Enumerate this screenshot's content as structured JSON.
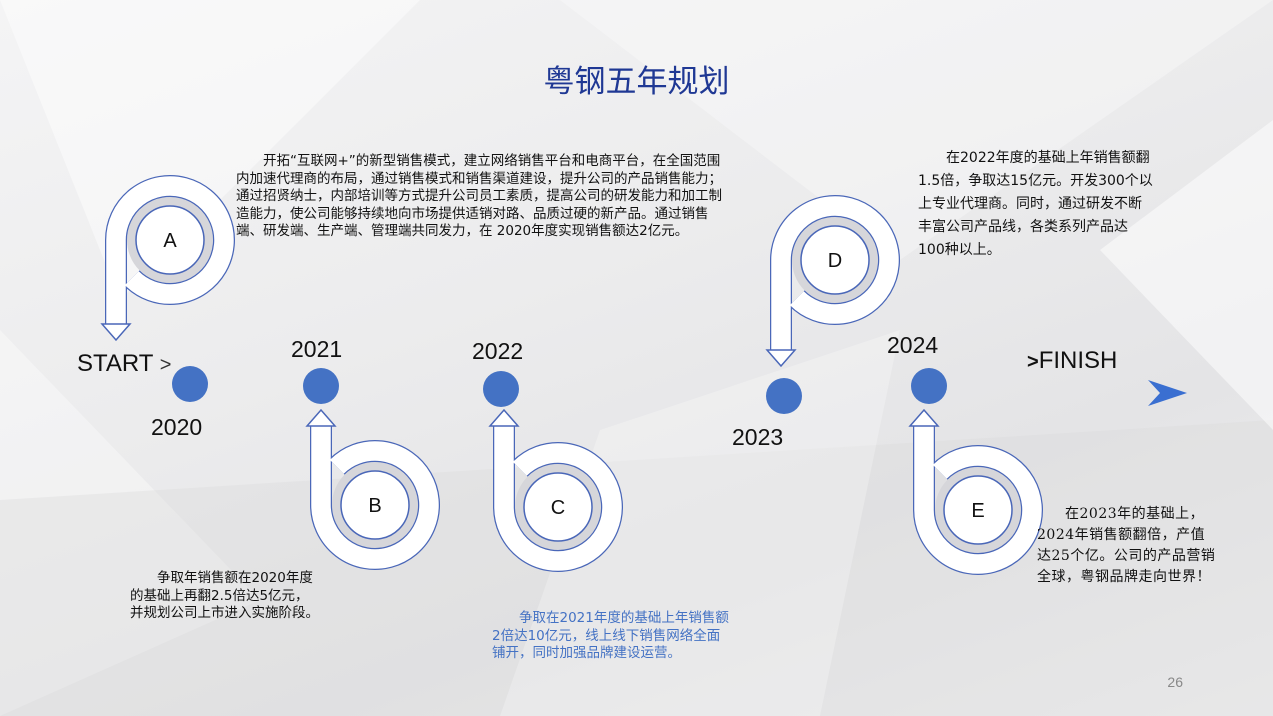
{
  "slide": {
    "title": "粤钢五年规划",
    "page_number": "26",
    "start_label": "START",
    "start_arrow": ">",
    "finish_arrow": ">",
    "finish_label": "FINISH"
  },
  "timeline": {
    "dot_color": "#4472c4",
    "years": [
      "2020",
      "2021",
      "2022",
      "2023",
      "2024"
    ]
  },
  "stages": [
    {
      "label": "A",
      "text": "开拓“互联网+”的新型销售模式，建立网络销售平台和电商平台，在全国范围内加速代理商的布局，通过销售模式和销售渠道建设，提升公司的产品销售能力；通过招贤纳士，内部培训等方式提升公司员工素质，提高公司的研发能力和加工制造能力，使公司能够持续地向市场提供适销对路、品质过硬的新产品。通过销售端、研发端、生产端、管理端共同发力，在 2020年度实现销售额达2亿元。"
    },
    {
      "label": "B",
      "text": "争取年销售额在2020年度的基础上再翻2.5倍达5亿元，并规划公司上市进入实施阶段。"
    },
    {
      "label": "C",
      "text": "争取在2021年度的基础上年销售额2倍达10亿元，线上线下销售网络全面铺开，同时加强品牌建设运营。",
      "text_color": "#4472c4"
    },
    {
      "label": "D",
      "text": "在2022年度的基础上年销售额翻1.5倍，争取达15亿元。开发300个以上专业代理商。同时，通过研发不断丰富公司产品线，各类系列产品达100种以上。"
    },
    {
      "label": "E",
      "text": "在2023年的基础上，2024年销售额翻倍，产值达25个亿。公司的产品营销全球，粤钢品牌走向世界！"
    }
  ],
  "colors": {
    "title": "#1f3894",
    "outline": "#4a67b8",
    "accent_arrow": "#3a6fd1"
  }
}
